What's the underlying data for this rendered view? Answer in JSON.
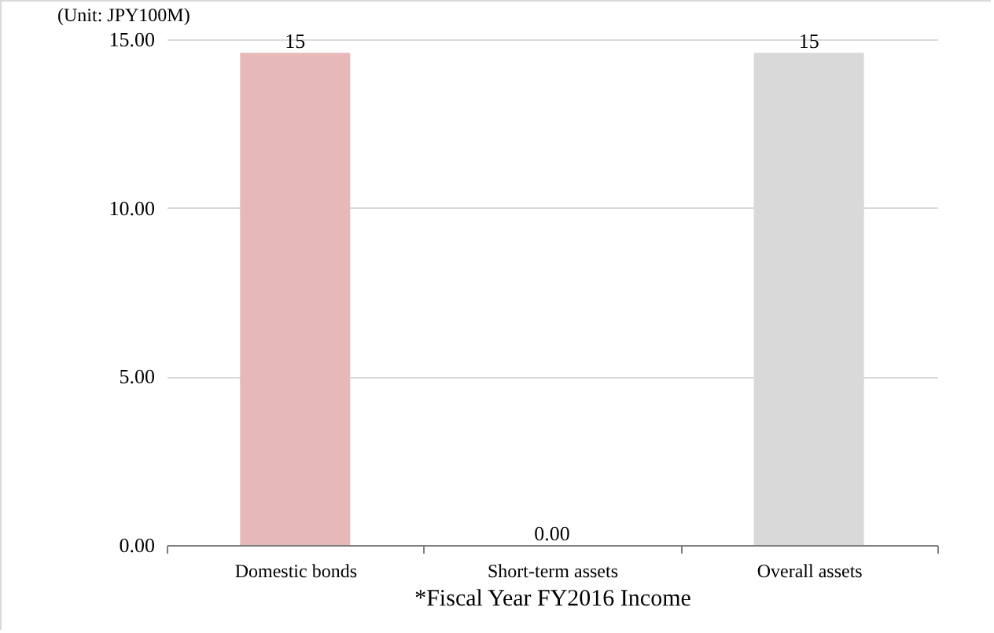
{
  "chart_data": {
    "type": "bar",
    "categories": [
      "Domestic bonds",
      "Short-term assets",
      "Overall assets"
    ],
    "values": [
      14.6,
      0,
      14.6
    ],
    "colors": [
      "#e6b8b7",
      "#bfbfbf",
      "#d9d9d9"
    ],
    "value_labels": [
      "15",
      "0.00",
      "15"
    ],
    "ylabel": "(Unit: JPY100M)",
    "xlabel": "*Fiscal Year FY2016 Income",
    "ylim": [
      0,
      15
    ],
    "yticks": [
      {
        "value": 0,
        "label": "0.00"
      },
      {
        "value": 5,
        "label": "5.00"
      },
      {
        "value": 10,
        "label": "10.00"
      },
      {
        "value": 15,
        "label": "15.00"
      }
    ],
    "grid": "y"
  }
}
